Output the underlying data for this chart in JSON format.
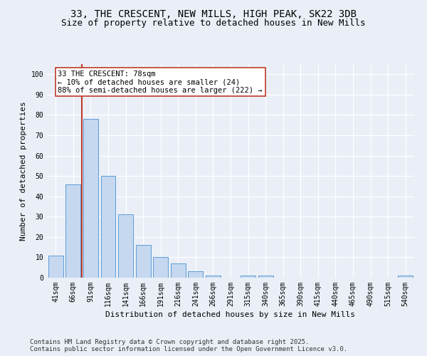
{
  "title": "33, THE CRESCENT, NEW MILLS, HIGH PEAK, SK22 3DB",
  "subtitle": "Size of property relative to detached houses in New Mills",
  "xlabel": "Distribution of detached houses by size in New Mills",
  "ylabel": "Number of detached properties",
  "categories": [
    "41sqm",
    "66sqm",
    "91sqm",
    "116sqm",
    "141sqm",
    "166sqm",
    "191sqm",
    "216sqm",
    "241sqm",
    "266sqm",
    "291sqm",
    "315sqm",
    "340sqm",
    "365sqm",
    "390sqm",
    "415sqm",
    "440sqm",
    "465sqm",
    "490sqm",
    "515sqm",
    "540sqm"
  ],
  "values": [
    11,
    46,
    78,
    50,
    31,
    16,
    10,
    7,
    3,
    1,
    0,
    1,
    1,
    0,
    0,
    0,
    0,
    0,
    0,
    0,
    1
  ],
  "bar_color": "#c5d8f0",
  "bar_edge_color": "#5b9bd5",
  "vline_x": 1.48,
  "vline_color": "#c0392b",
  "annotation_text": "33 THE CRESCENT: 78sqm\n← 10% of detached houses are smaller (24)\n88% of semi-detached houses are larger (222) →",
  "annotation_box_color": "#ffffff",
  "annotation_box_edge": "#c0392b",
  "ylim": [
    0,
    105
  ],
  "yticks": [
    0,
    10,
    20,
    30,
    40,
    50,
    60,
    70,
    80,
    90,
    100
  ],
  "bg_color": "#eaeff7",
  "plot_bg_color": "#eaeff7",
  "footer_text": "Contains HM Land Registry data © Crown copyright and database right 2025.\nContains public sector information licensed under the Open Government Licence v3.0.",
  "title_fontsize": 10,
  "subtitle_fontsize": 9,
  "axis_label_fontsize": 8,
  "tick_fontsize": 7,
  "annotation_fontsize": 7.5,
  "footer_fontsize": 6.5
}
